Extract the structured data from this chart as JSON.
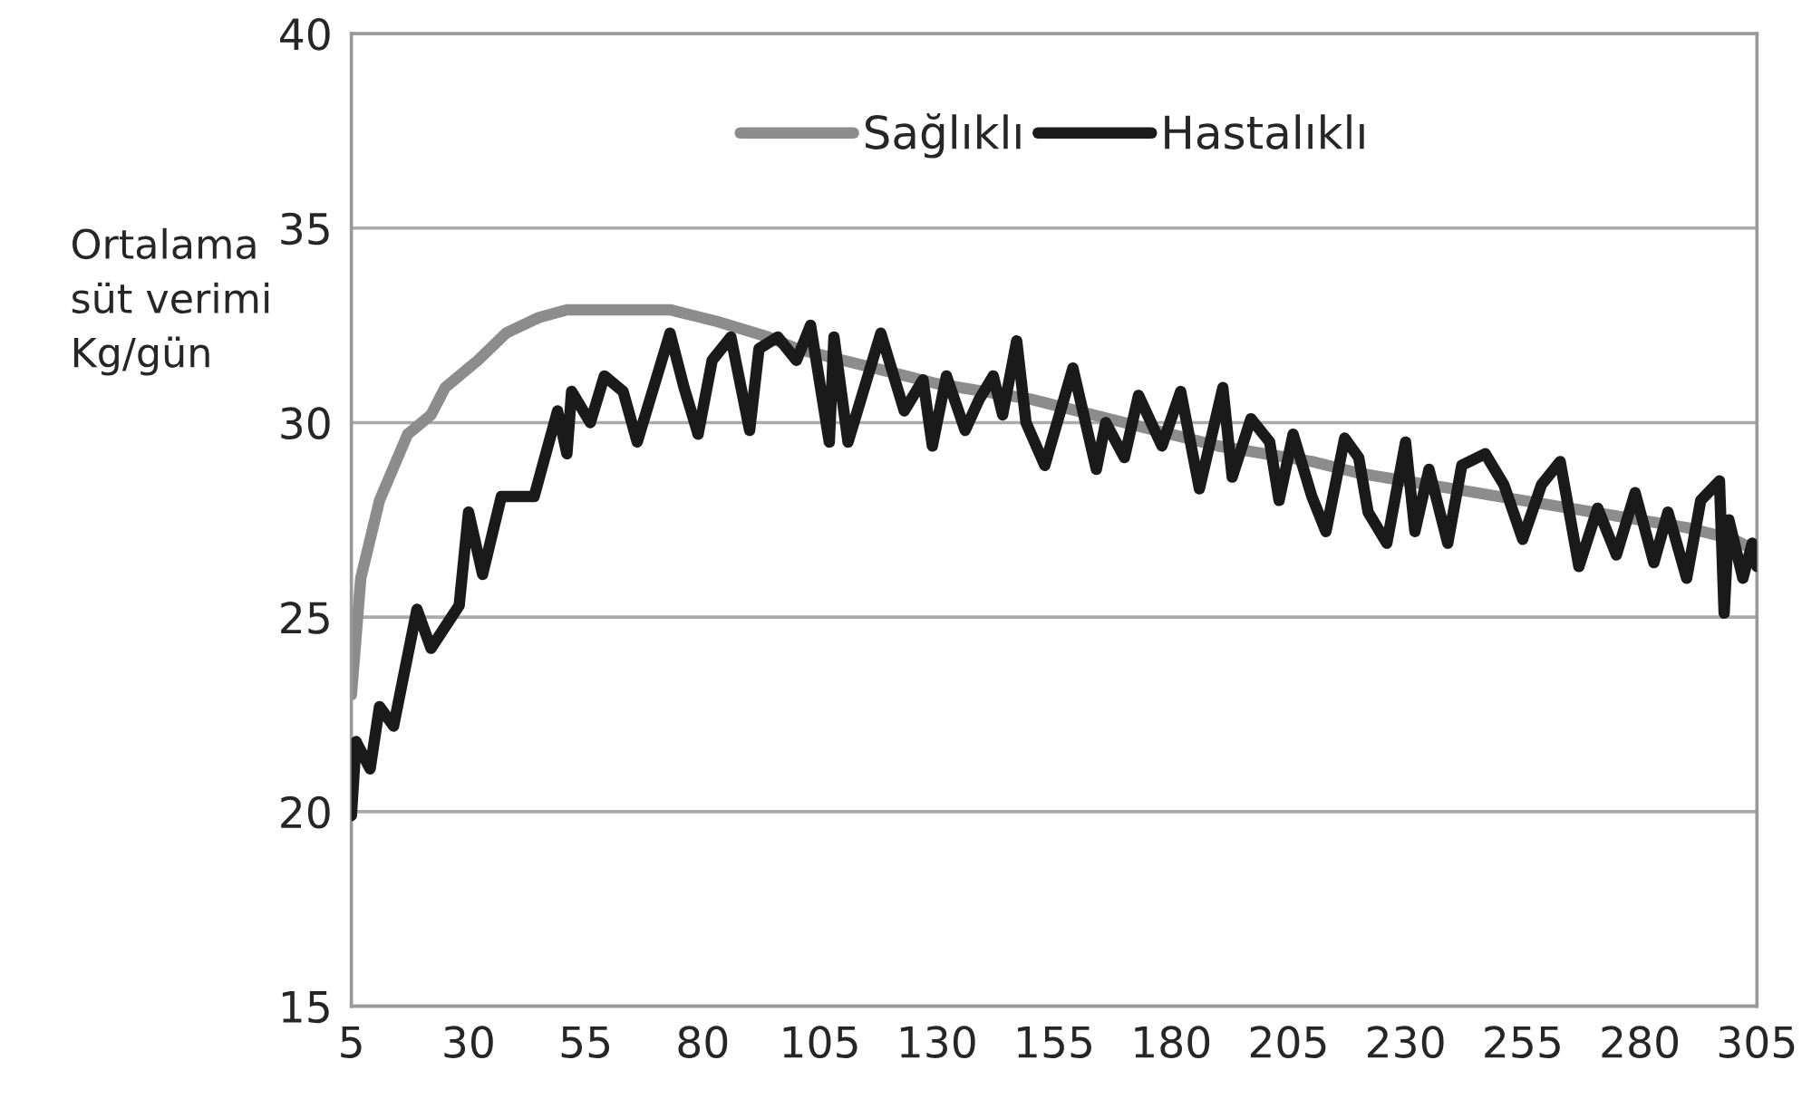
{
  "chart_data": {
    "type": "line",
    "ylabel": "Ortalama\nsüt verimi\nKg/gün",
    "xlim": [
      5,
      305
    ],
    "xticks": [
      5,
      30,
      55,
      80,
      105,
      130,
      155,
      180,
      205,
      230,
      255,
      280,
      305
    ],
    "ylim": [
      15,
      40
    ],
    "yticks": [
      15,
      20,
      25,
      30,
      35,
      40
    ],
    "grid": "y",
    "legend": "top",
    "marker": "none",
    "line_style": "solid",
    "series": [
      {
        "name": "Sağlıklı",
        "color": "#8c8c8c",
        "x": [
          5,
          7,
          11,
          17,
          22,
          25,
          32,
          38,
          45,
          51,
          60,
          73,
          83,
          94,
          100,
          110,
          120,
          130,
          140,
          150,
          160,
          170,
          180,
          190,
          200,
          210,
          220,
          230,
          240,
          250,
          260,
          270,
          280,
          290,
          300,
          305
        ],
        "values": [
          23.0,
          26.0,
          28.0,
          29.7,
          30.2,
          30.9,
          31.6,
          32.3,
          32.7,
          32.9,
          32.9,
          32.9,
          32.6,
          32.2,
          31.9,
          31.6,
          31.3,
          31.0,
          30.8,
          30.6,
          30.3,
          30.0,
          29.7,
          29.4,
          29.2,
          29.0,
          28.7,
          28.5,
          28.3,
          28.1,
          27.9,
          27.7,
          27.5,
          27.3,
          27.0,
          26.7
        ]
      },
      {
        "name": "Hastalıklı",
        "color": "#1a1a1a",
        "x": [
          5,
          6,
          9,
          11,
          14,
          19,
          22,
          28,
          30,
          33,
          37,
          44,
          49,
          51,
          52,
          56,
          59,
          63,
          66,
          70,
          73,
          76,
          79,
          82,
          86,
          90,
          92,
          96,
          100,
          103,
          107,
          108,
          111,
          118,
          123,
          127,
          129,
          132,
          136,
          139,
          142,
          144,
          147,
          149,
          153,
          159,
          164,
          166,
          170,
          173,
          178,
          182,
          186,
          191,
          193,
          197,
          201,
          203,
          206,
          210,
          213,
          217,
          220,
          222,
          226,
          230,
          232,
          235,
          239,
          242,
          247,
          251,
          255,
          259,
          263,
          267,
          271,
          275,
          279,
          283,
          286,
          290,
          293,
          297,
          298,
          299,
          302,
          304,
          305
        ],
        "values": [
          19.9,
          21.8,
          21.1,
          22.7,
          22.2,
          25.2,
          24.2,
          25.3,
          27.7,
          26.1,
          28.1,
          28.1,
          30.3,
          29.2,
          30.8,
          30.0,
          31.2,
          30.8,
          29.5,
          31.1,
          32.3,
          30.9,
          29.7,
          31.6,
          32.2,
          29.8,
          31.9,
          32.2,
          31.6,
          32.5,
          29.5,
          32.2,
          29.5,
          32.3,
          30.3,
          31.1,
          29.4,
          31.2,
          29.8,
          30.6,
          31.2,
          30.2,
          32.1,
          30.0,
          28.9,
          31.4,
          28.8,
          30.0,
          29.1,
          30.7,
          29.4,
          30.8,
          28.3,
          30.9,
          28.6,
          30.1,
          29.5,
          28.0,
          29.7,
          28.1,
          27.2,
          29.6,
          29.1,
          27.7,
          26.9,
          29.5,
          27.2,
          28.8,
          26.9,
          28.9,
          29.2,
          28.4,
          27.0,
          28.4,
          29.0,
          26.3,
          27.8,
          26.6,
          28.2,
          26.4,
          27.7,
          26.0,
          28.0,
          28.5,
          25.1,
          27.5,
          26.0,
          26.9,
          26.3
        ]
      }
    ]
  }
}
